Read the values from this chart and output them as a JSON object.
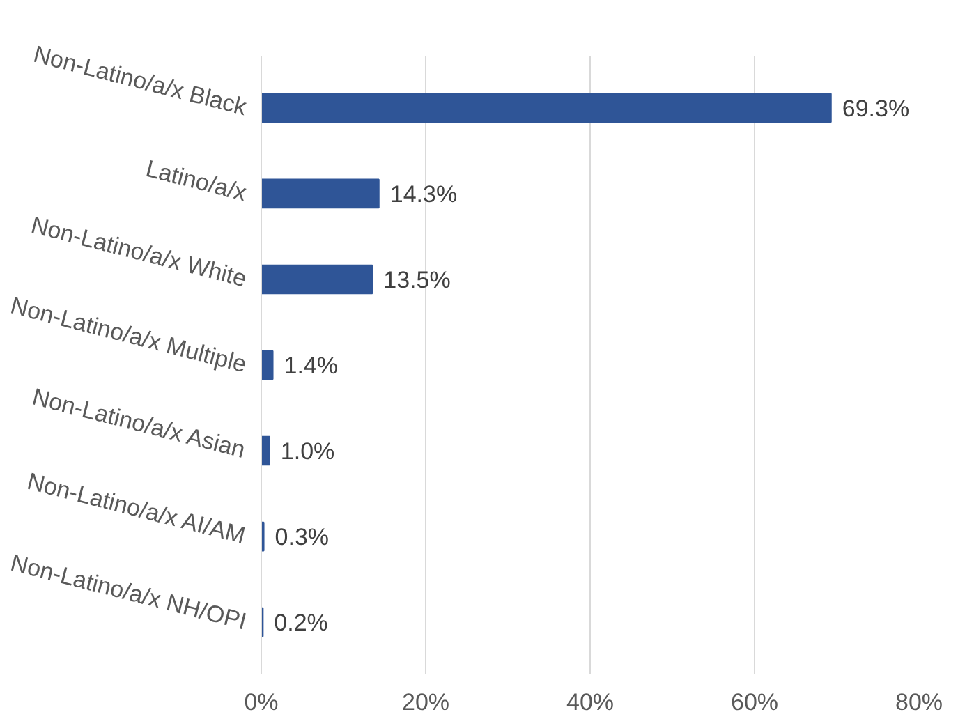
{
  "chart_data": {
    "type": "bar",
    "orientation": "horizontal",
    "categories": [
      "Non-Latino/a/x Black",
      "Latino/a/x",
      "Non-Latino/a/x White",
      "Non-Latino/a/x Multiple",
      "Non-Latino/a/x Asian",
      "Non-Latino/a/x AI/AM",
      "Non-Latino/a/x NH/OPI"
    ],
    "values": [
      69.3,
      14.3,
      13.5,
      1.4,
      1.0,
      0.3,
      0.2
    ],
    "value_labels": [
      "69.3%",
      "14.3%",
      "13.5%",
      "1.4%",
      "1.0%",
      "0.3%",
      "0.2%"
    ],
    "color": "#2f5597",
    "xlim": [
      0,
      80
    ],
    "xticks": [
      {
        "value": 0,
        "label": "0%"
      },
      {
        "value": 20,
        "label": "20%"
      },
      {
        "value": 40,
        "label": "40%"
      },
      {
        "value": 60,
        "label": "60%"
      },
      {
        "value": 80,
        "label": "80%"
      }
    ],
    "grid": "x"
  }
}
